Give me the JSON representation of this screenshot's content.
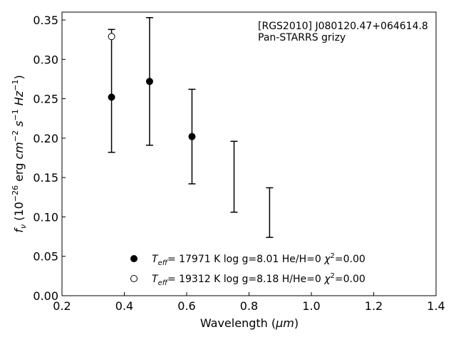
{
  "chart_data": {
    "type": "scatter",
    "xlabel_text": "Wavelength (",
    "xlabel_unit": "μm",
    "xlabel_close": ")",
    "ylabel_prefix": "f",
    "ylabel_sub": "ν",
    "ylabel_mid1": " (10",
    "ylabel_exp1": "−26",
    "ylabel_mid2": " erg ",
    "ylabel_cm": "cm",
    "ylabel_exp2": "−2",
    "ylabel_s": " s",
    "ylabel_exp3": "−1",
    "ylabel_hz": " Hz",
    "ylabel_exp4": "−1",
    "ylabel_end": ")",
    "xlim": [
      0.2,
      1.4
    ],
    "ylim": [
      0.0,
      0.36
    ],
    "xticks": [
      0.2,
      0.4,
      0.6,
      0.8,
      1.0,
      1.2,
      1.4
    ],
    "yticks": [
      0.0,
      0.05,
      0.1,
      0.15,
      0.2,
      0.25,
      0.3,
      0.35
    ],
    "annotation_line1": "[RGS2010] J080120.47+064614.8",
    "annotation_line2": "Pan-STARRS grizy",
    "observed": [
      {
        "x": 0.481,
        "y": 0.272,
        "yerr": 0.081
      },
      {
        "x": 0.617,
        "y": 0.202,
        "yerr": 0.06
      },
      {
        "x": 0.752,
        "y": 0.151,
        "yerr": 0.045
      },
      {
        "x": 0.866,
        "y": 0.1055,
        "yerr": 0.0315
      },
      {
        "x": 0.359,
        "y": 0.26,
        "yerr": 0.078
      }
    ],
    "series": [
      {
        "marker": "filled",
        "label_T": "T",
        "label_sub": "eff",
        "label_rest": "= 17971 K  log g=8.01  He/H=0  ",
        "label_chi": "χ",
        "label_chi_exp": "2",
        "label_chi_val": "=0.00",
        "points": [
          {
            "x": 0.359,
            "y": 0.252
          },
          {
            "x": 0.481,
            "y": 0.272
          },
          {
            "x": 0.617,
            "y": 0.202
          }
        ]
      },
      {
        "marker": "open",
        "label_T": "T",
        "label_sub": "eff",
        "label_rest": "= 19312 K  log g=8.18  H/He=0  ",
        "label_chi": "χ",
        "label_chi_exp": "2",
        "label_chi_val": "=0.00",
        "points": [
          {
            "x": 0.359,
            "y": 0.329
          }
        ]
      }
    ],
    "colors": {
      "marker": "#000000",
      "axes": "#000000"
    }
  }
}
